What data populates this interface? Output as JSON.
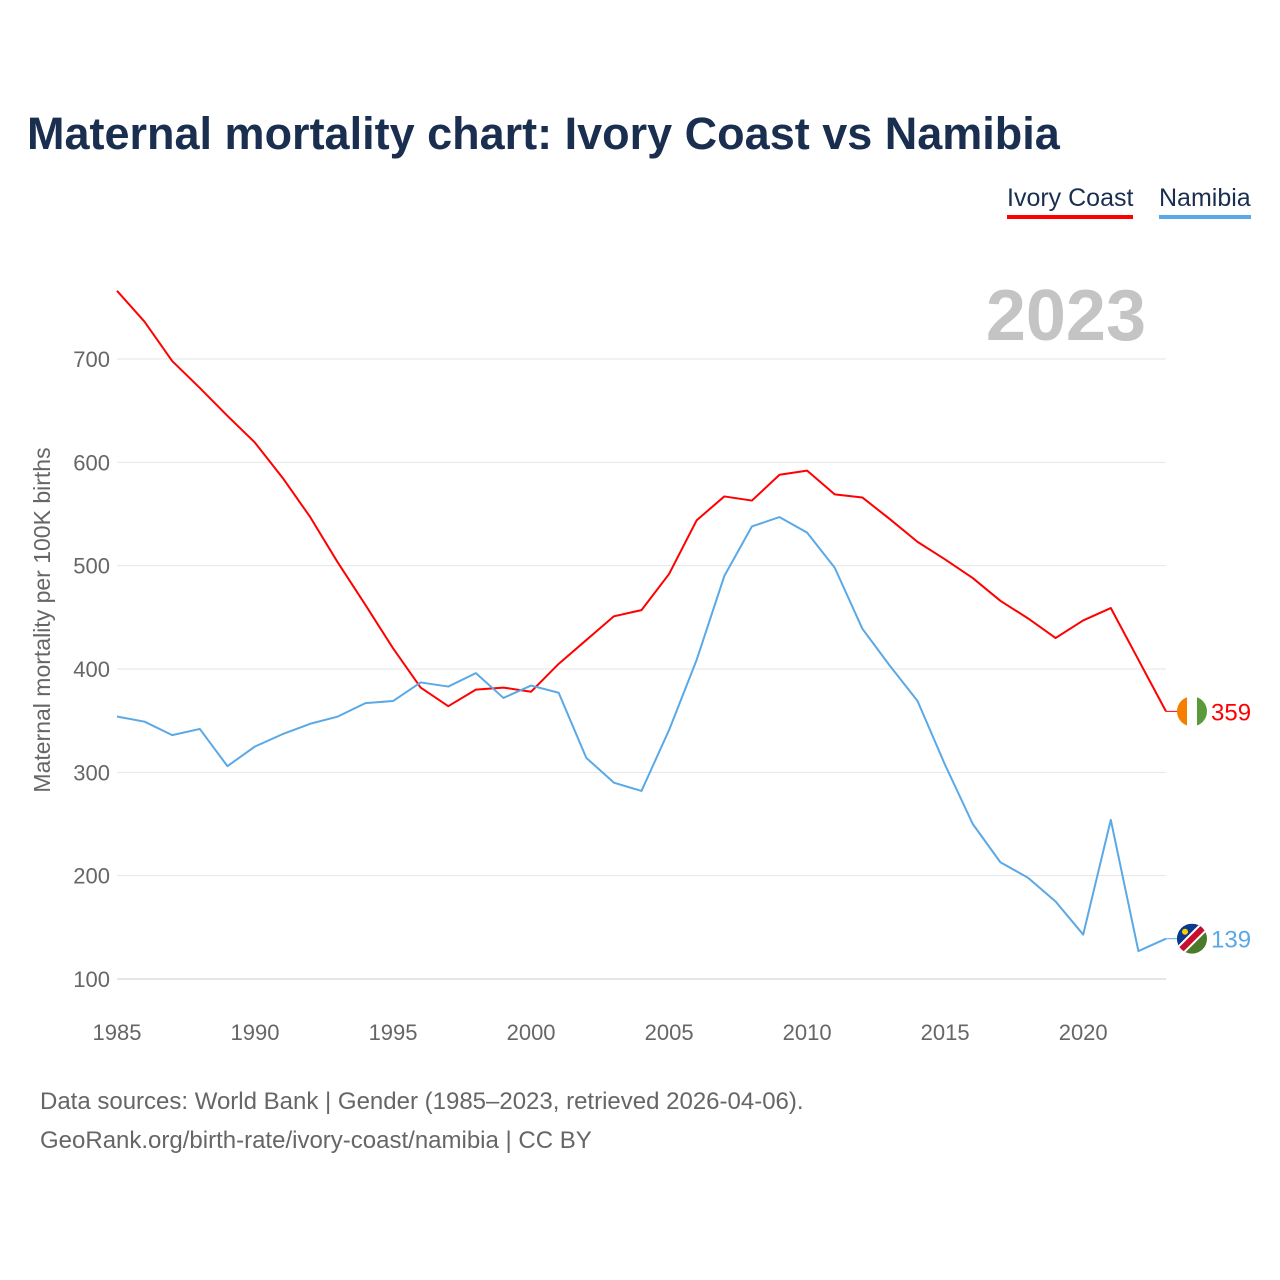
{
  "title": "Maternal mortality chart: Ivory Coast vs Namibia",
  "footer": {
    "line1": "Data sources: World Bank | Gender (1985–2023, retrieved 2026-04-06).",
    "line2": "GeoRank.org/birth-rate/ivory-coast/namibia | CC BY"
  },
  "chart_data": {
    "type": "line",
    "title": "Maternal mortality chart: Ivory Coast vs Namibia",
    "year_label": "2023",
    "xlabel": "",
    "ylabel": "Maternal mortality per 100K births",
    "xlim": [
      1985,
      2023
    ],
    "ylim": [
      100,
      700
    ],
    "xticks": [
      "1985",
      "1990",
      "1995",
      "2000",
      "2005",
      "2010",
      "2015",
      "2020"
    ],
    "yticks": [
      "100",
      "200",
      "300",
      "400",
      "500",
      "600",
      "700"
    ],
    "grid": true,
    "legend_position": "top-right",
    "x": [
      1985,
      1986,
      1987,
      1988,
      1989,
      1990,
      1991,
      1992,
      1993,
      1994,
      1995,
      1996,
      1997,
      1998,
      1999,
      2000,
      2001,
      2002,
      2003,
      2004,
      2005,
      2006,
      2007,
      2008,
      2009,
      2010,
      2011,
      2012,
      2013,
      2014,
      2015,
      2016,
      2017,
      2018,
      2019,
      2020,
      2021,
      2022,
      2023
    ],
    "series": [
      {
        "name": "Ivory Coast",
        "color": "#ff0000",
        "end_label": "359",
        "values": [
          766,
          736,
          698,
          672,
          645,
          619,
          585,
          547,
          503,
          462,
          420,
          382,
          364,
          380,
          382,
          378,
          405,
          428,
          451,
          457,
          492,
          544,
          567,
          563,
          588,
          592,
          569,
          566,
          545,
          523,
          506,
          488,
          466,
          449,
          430,
          447,
          459,
          409,
          359
        ]
      },
      {
        "name": "Namibia",
        "color": "#5aa9e6",
        "end_label": "139",
        "values": [
          354,
          349,
          336,
          342,
          306,
          325,
          337,
          347,
          354,
          367,
          369,
          387,
          383,
          396,
          372,
          384,
          377,
          314,
          290,
          282,
          341,
          409,
          490,
          538,
          547,
          532,
          498,
          439,
          403,
          369,
          307,
          250,
          213,
          198,
          175,
          143,
          254,
          127,
          139
        ]
      }
    ]
  }
}
